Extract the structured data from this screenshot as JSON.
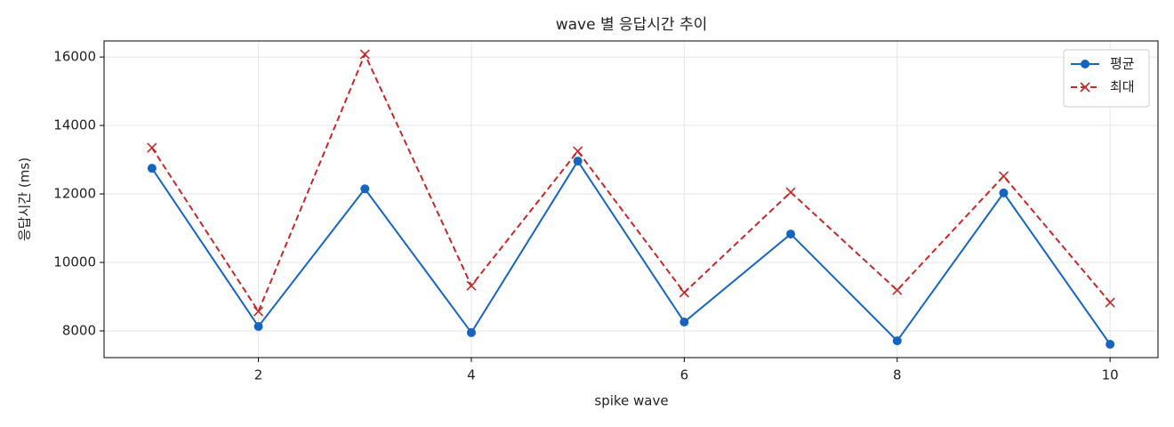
{
  "chart_data": {
    "type": "line",
    "title": "wave 별 응답시간 추이",
    "xlabel": "spike wave",
    "ylabel": "응답시간 (ms)",
    "x": [
      1,
      2,
      3,
      4,
      5,
      6,
      7,
      8,
      9,
      10
    ],
    "series": [
      {
        "name": "평균",
        "color": "#1565c0",
        "marker": "o",
        "linestyle": "solid",
        "values": [
          12750,
          8130,
          12150,
          7950,
          12960,
          8260,
          10830,
          7710,
          12030,
          7610
        ]
      },
      {
        "name": "최대",
        "color": "#c62828",
        "marker": "x",
        "linestyle": "dashed",
        "values": [
          13350,
          8570,
          16080,
          9320,
          13250,
          9120,
          12050,
          9190,
          12520,
          8830
        ]
      }
    ],
    "xlim": [
      0.55,
      10.45
    ],
    "xticks": [
      2,
      4,
      6,
      8,
      10
    ],
    "ylim": [
      7220,
      16470
    ],
    "yticks": [
      8000,
      10000,
      12000,
      14000,
      16000
    ],
    "grid": true,
    "legend": "upper right"
  }
}
